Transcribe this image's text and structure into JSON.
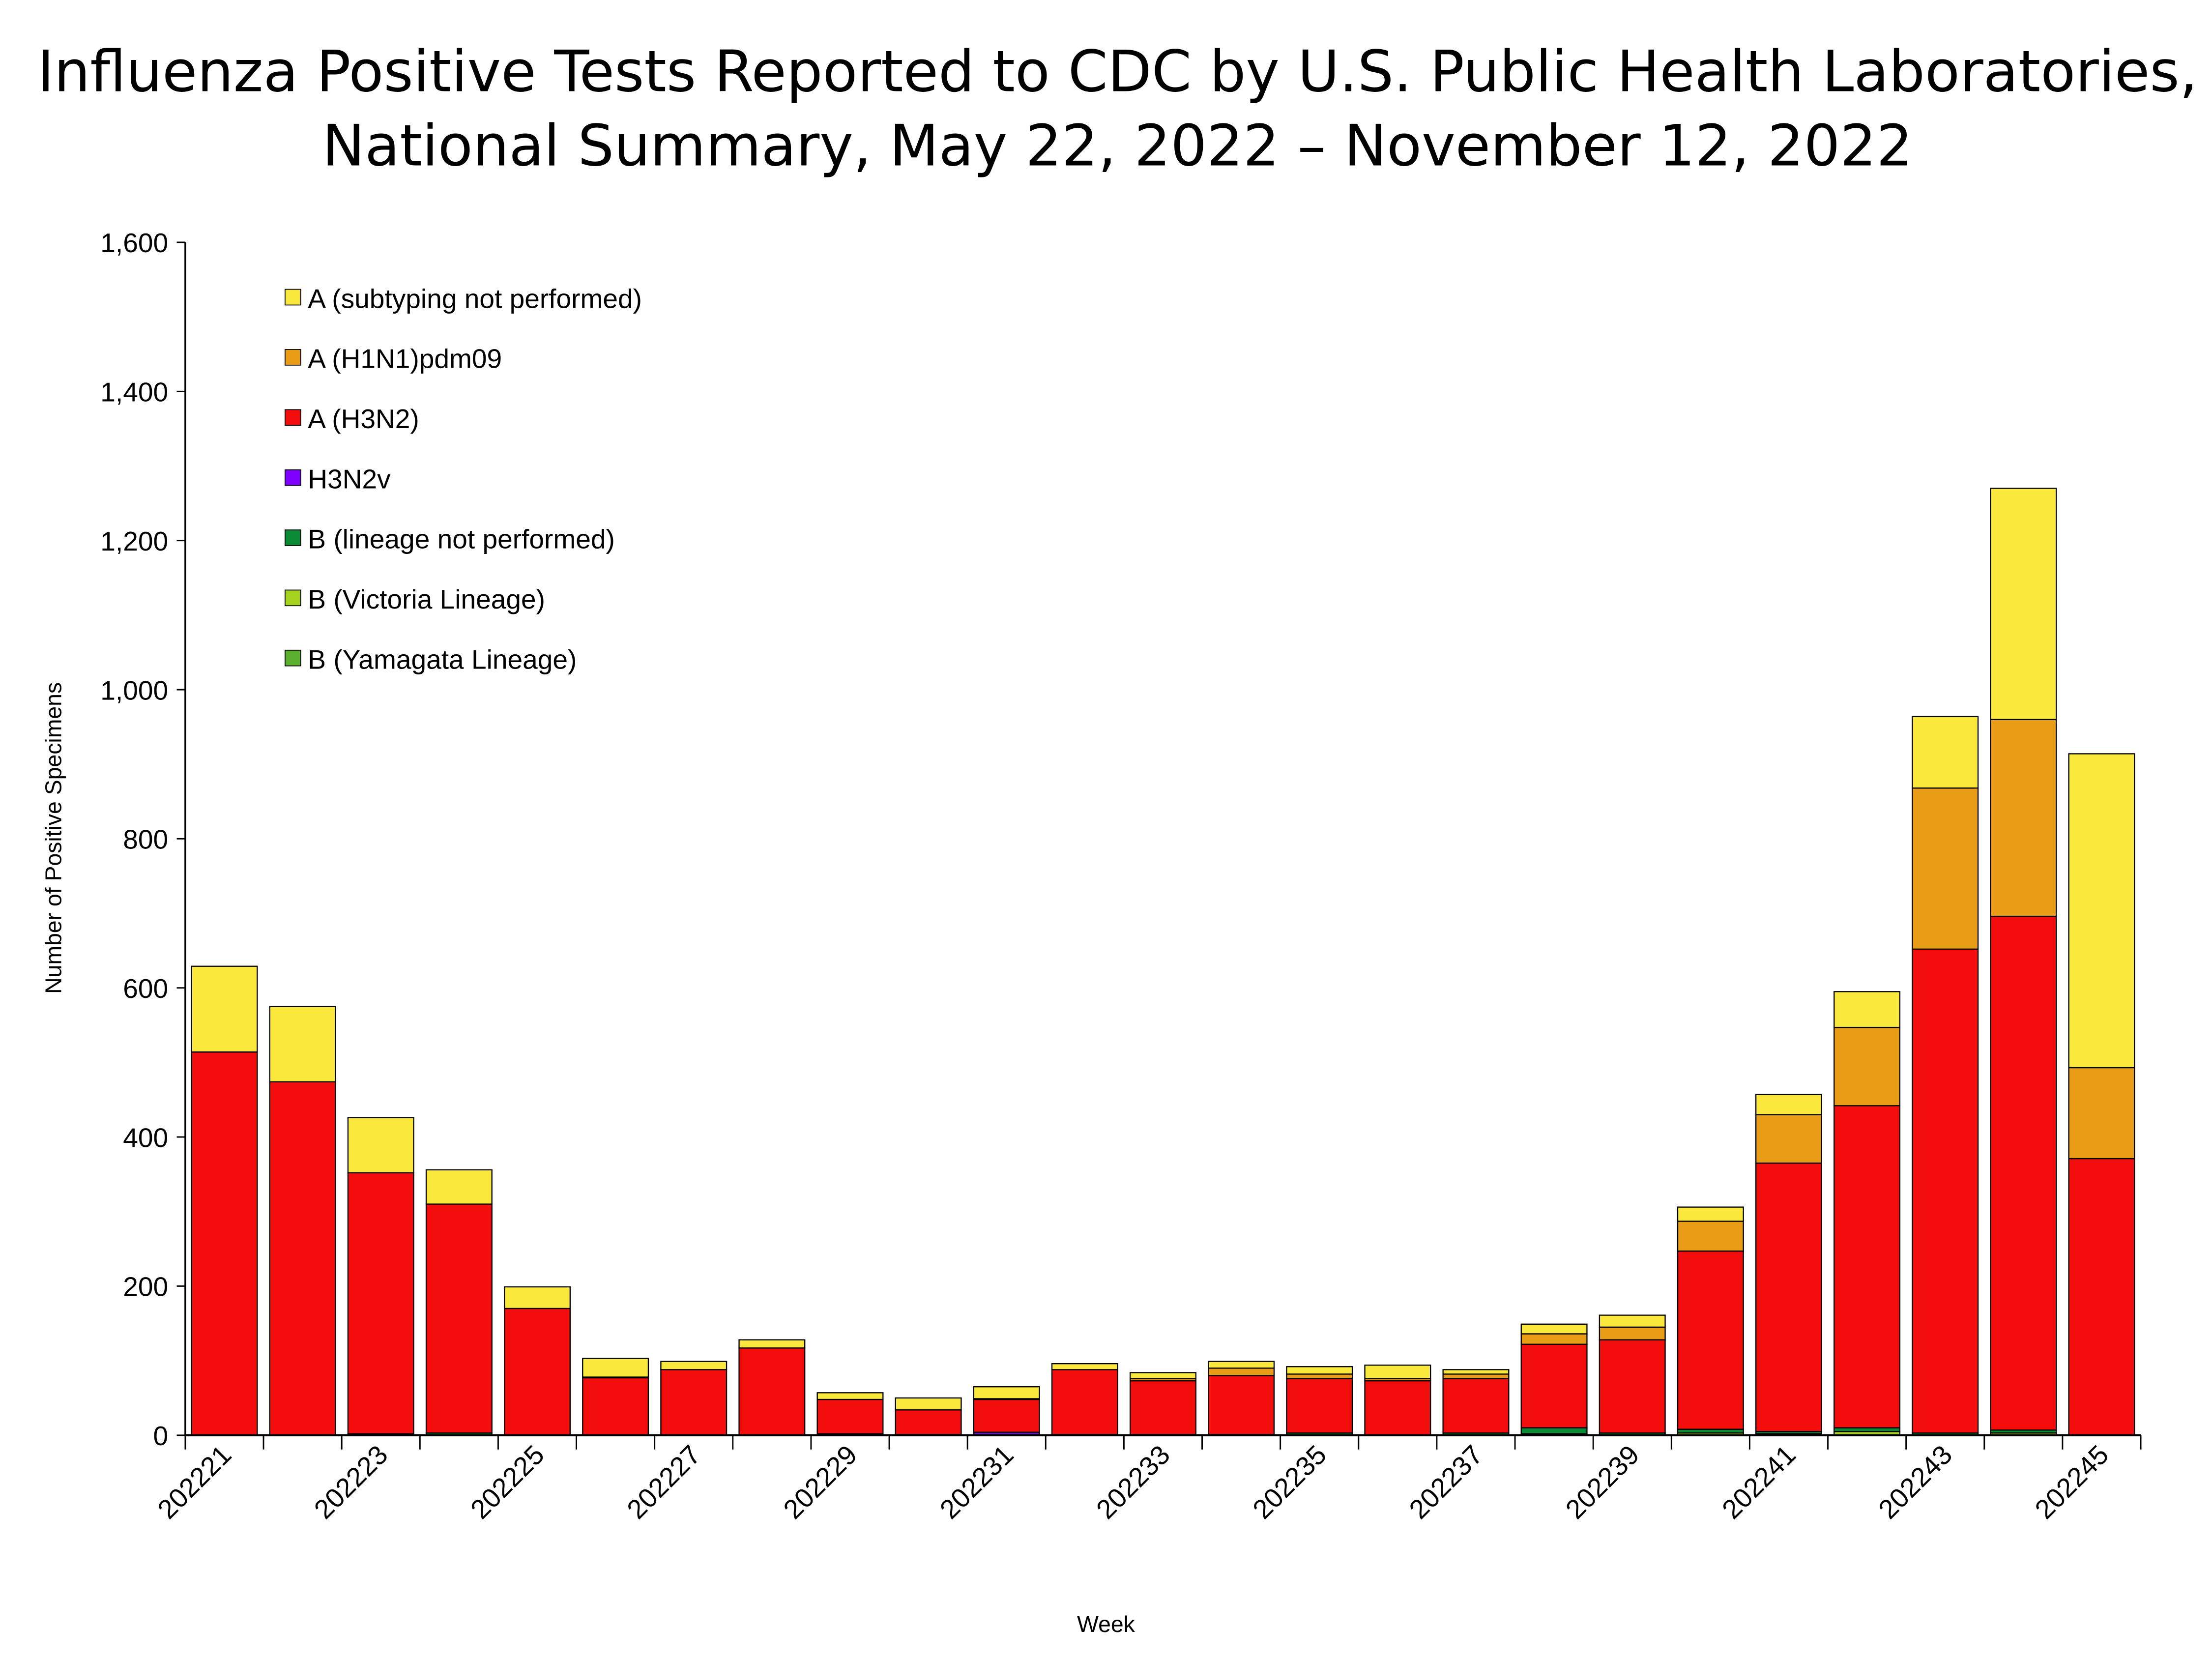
{
  "chart_data": {
    "type": "bar",
    "stacked": true,
    "title": [
      "Influenza Positive Tests Reported to CDC by U.S. Public Health Laboratories,",
      "National Summary, May 22, 2022 – November 12, 2022"
    ],
    "xlabel": "Week",
    "ylabel": "Number of Positive Specimens",
    "ylim": [
      0,
      1600
    ],
    "yticks": [
      "0",
      "200",
      "400",
      "600",
      "800",
      "1,000",
      "1,200",
      "1,400",
      "1,600"
    ],
    "grid": false,
    "legend_position": "top-left",
    "categories": [
      "202221",
      "202222",
      "202223",
      "202224",
      "202225",
      "202226",
      "202227",
      "202228",
      "202229",
      "202230",
      "202231",
      "202232",
      "202233",
      "202234",
      "202235",
      "202236",
      "202237",
      "202238",
      "202239",
      "202240",
      "202241",
      "202242",
      "202243",
      "202244",
      "202245"
    ],
    "xtick_labels": [
      "202221",
      "202223",
      "202225",
      "202227",
      "202229",
      "202231",
      "202233",
      "202235",
      "202237",
      "202239",
      "202241",
      "202243",
      "202245"
    ],
    "series": [
      {
        "name": "B (Yamagata Lineage)",
        "color": "#5BB12F",
        "values": [
          0,
          0,
          0,
          0,
          0,
          0,
          0,
          0,
          0,
          0,
          0,
          0,
          0,
          0,
          0,
          0,
          0,
          0,
          0,
          0,
          0,
          0,
          0,
          0,
          0
        ]
      },
      {
        "name": "B (Victoria Lineage)",
        "color": "#A6D41E",
        "values": [
          0,
          0,
          0,
          0,
          0,
          0,
          0,
          0,
          0,
          0,
          0,
          0,
          0,
          1,
          0,
          0,
          0,
          2,
          0,
          3,
          2,
          5,
          0,
          3,
          0
        ]
      },
      {
        "name": "B (lineage not performed)",
        "color": "#0B8A35",
        "values": [
          0,
          0,
          2,
          3,
          0,
          0,
          0,
          0,
          2,
          1,
          1,
          1,
          1,
          0,
          3,
          0,
          3,
          8,
          3,
          5,
          3,
          5,
          3,
          4,
          0
        ]
      },
      {
        "name": "H3N2v",
        "color": "#7F00FF",
        "values": [
          0,
          0,
          0,
          0,
          0,
          0,
          0,
          0,
          0,
          0,
          3,
          0,
          0,
          0,
          0,
          0,
          0,
          0,
          0,
          0,
          0,
          0,
          0,
          0,
          0
        ]
      },
      {
        "name": "A (H3N2)",
        "color": "#F40D0D",
        "values": [
          514,
          474,
          350,
          307,
          170,
          77,
          88,
          117,
          46,
          33,
          44,
          87,
          72,
          79,
          73,
          73,
          73,
          112,
          125,
          239,
          360,
          432,
          649,
          689,
          371
        ]
      },
      {
        "name": "A (H1N1)pdm09",
        "color": "#E99C16",
        "values": [
          0,
          0,
          0,
          0,
          0,
          1,
          0,
          0,
          0,
          0,
          1,
          0,
          3,
          10,
          6,
          3,
          6,
          14,
          17,
          40,
          65,
          105,
          216,
          264,
          122
        ]
      },
      {
        "name": "A (subtyping not performed)",
        "color": "#FAE93C",
        "values": [
          115,
          101,
          74,
          46,
          29,
          25,
          11,
          11,
          9,
          16,
          16,
          8,
          8,
          9,
          10,
          18,
          6,
          13,
          16,
          19,
          27,
          48,
          96,
          310,
          421
        ]
      }
    ]
  }
}
